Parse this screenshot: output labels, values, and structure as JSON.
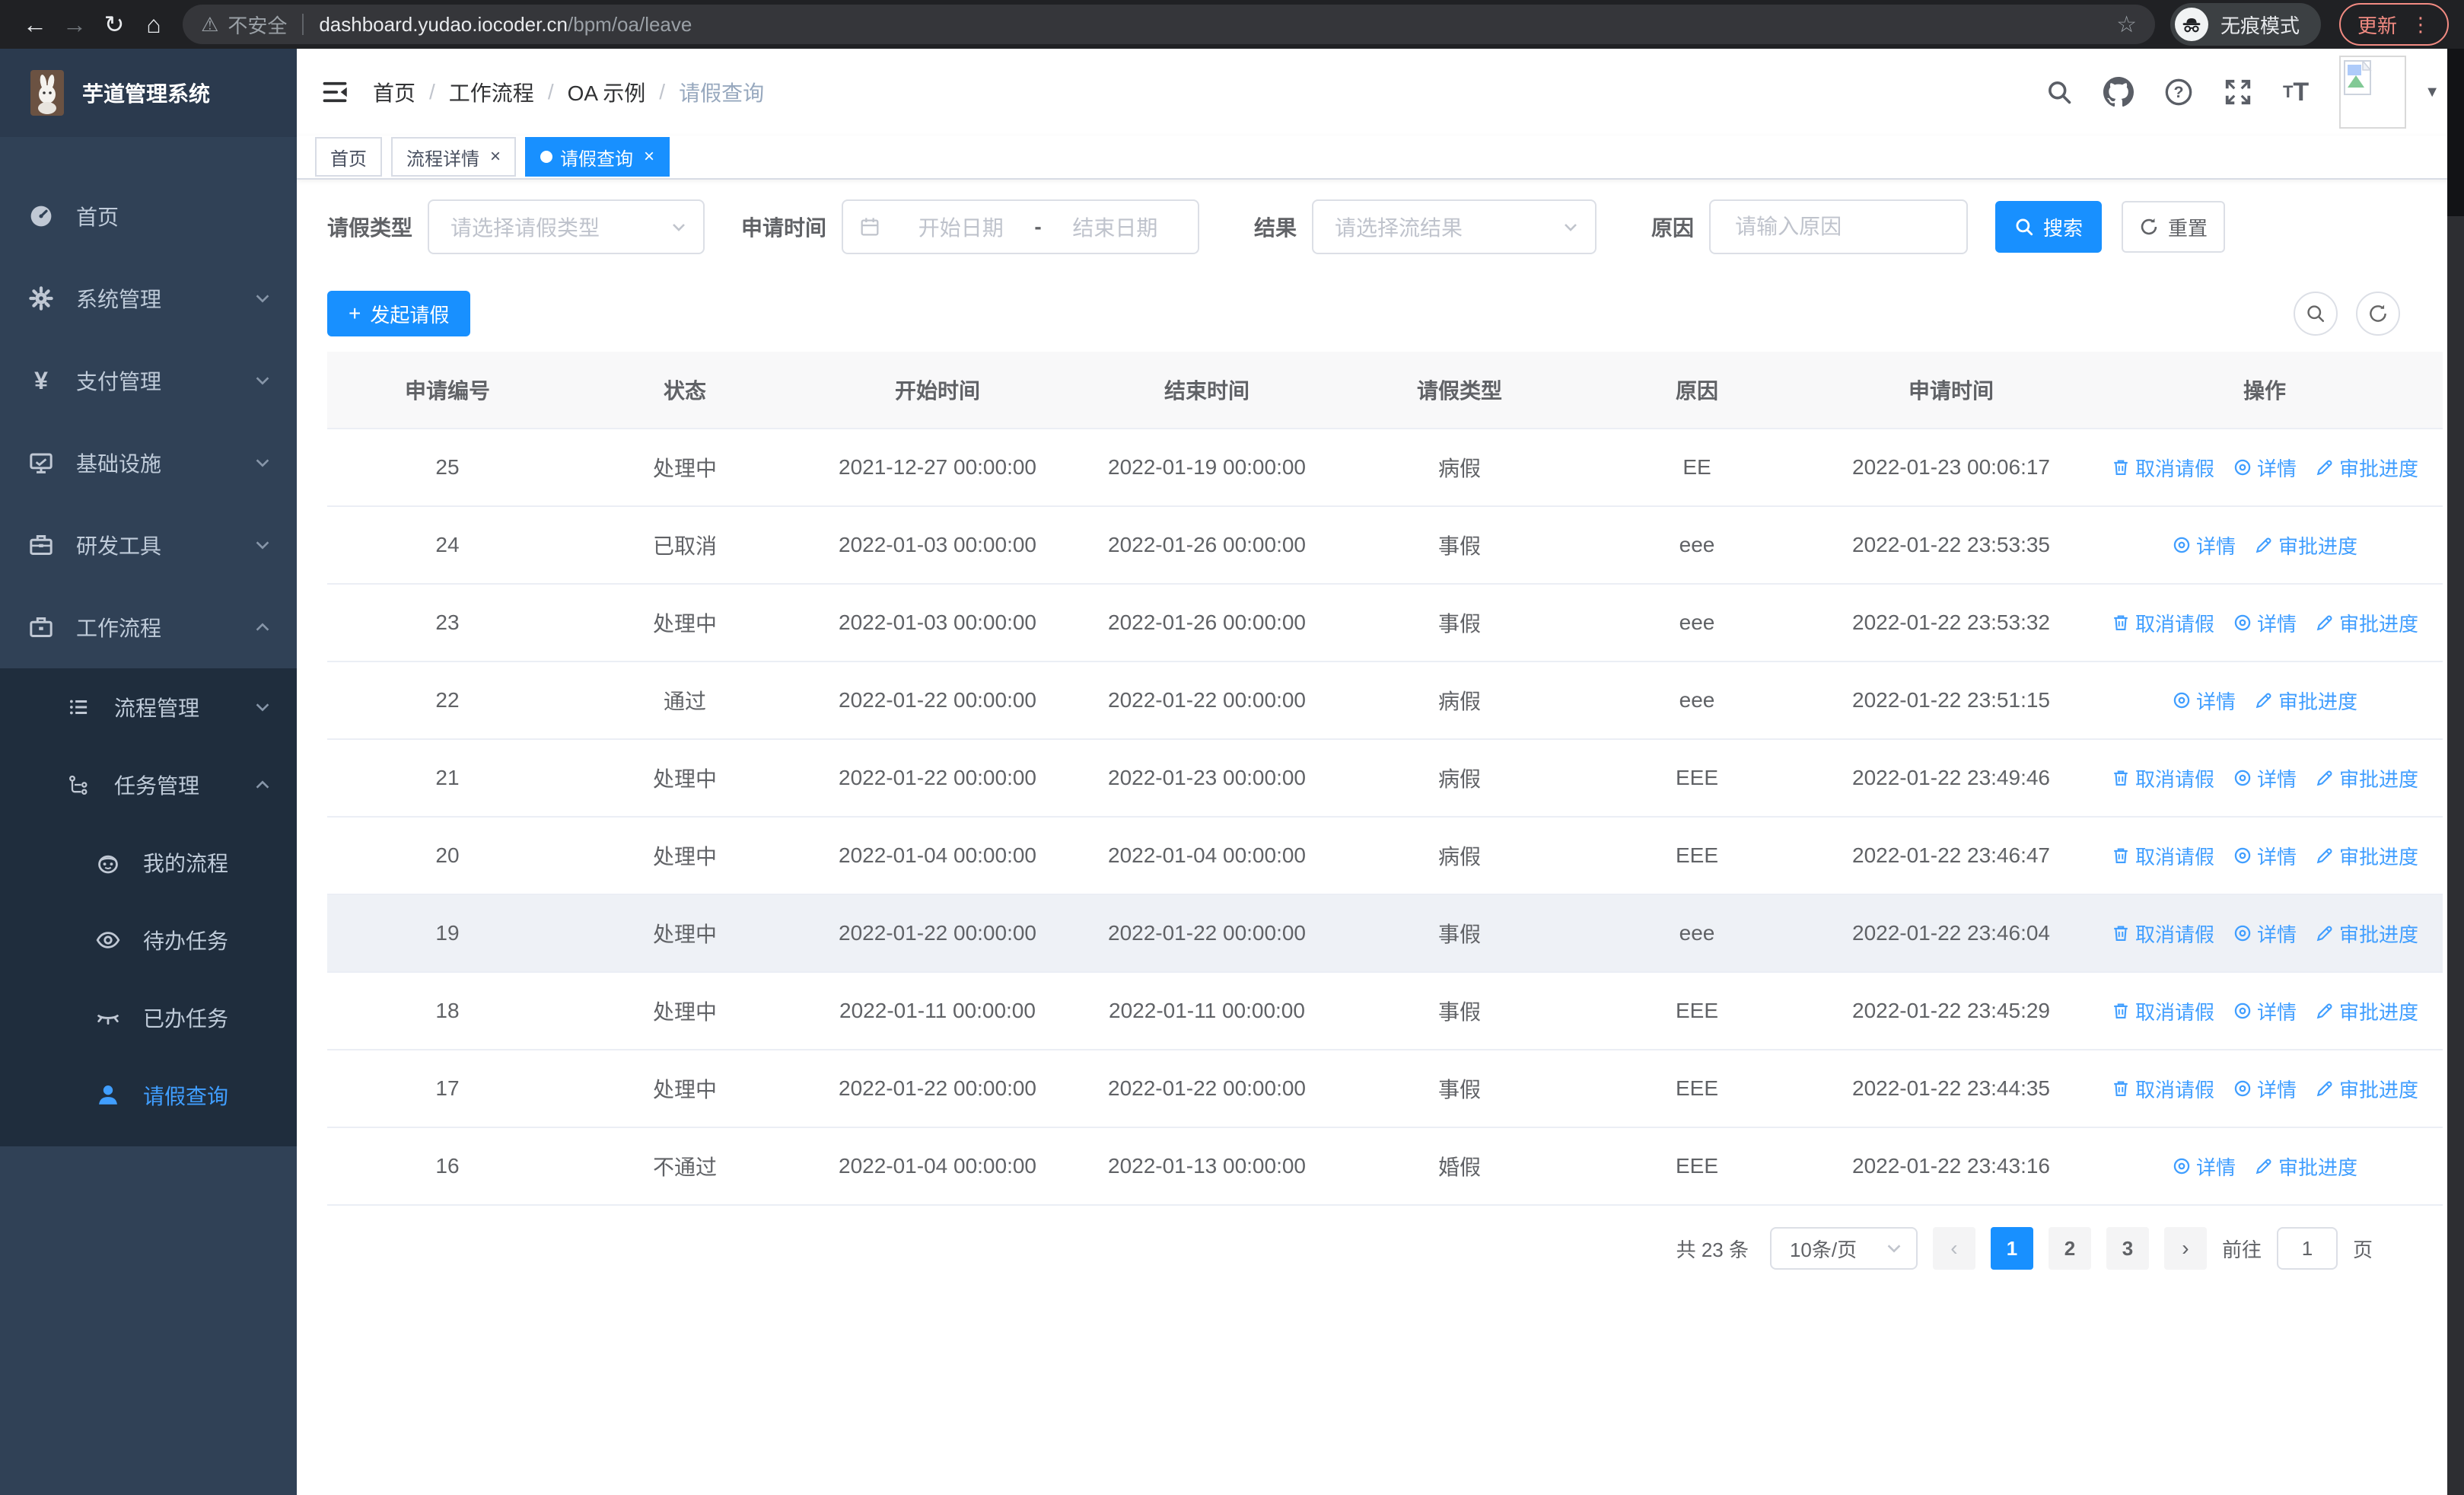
{
  "browser": {
    "security_label": "不安全",
    "url_host": "dashboard.yudao.iocoder.cn",
    "url_path": "/bpm/oa/leave",
    "incognito_label": "无痕模式",
    "update_label": "更新"
  },
  "colors": {
    "accent": "#1890ff",
    "link": "#409eff",
    "sidebar_bg": "#304156",
    "submenu_bg": "#1f2d3d",
    "tab_active_bg": "#1890ff",
    "update_button": "#f28b82"
  },
  "header": {
    "logo_title": "芋道管理系统",
    "breadcrumb": [
      "首页",
      "工作流程",
      "OA 示例",
      "请假查询"
    ]
  },
  "tabs": [
    {
      "label": "首页",
      "closable": false,
      "active": false
    },
    {
      "label": "流程详情",
      "closable": true,
      "active": false
    },
    {
      "label": "请假查询",
      "closable": true,
      "active": true
    }
  ],
  "sidebar": {
    "items": [
      {
        "label": "首页",
        "icon": "dashboard-icon"
      },
      {
        "label": "系统管理",
        "icon": "gear-icon",
        "arrow": "down"
      },
      {
        "label": "支付管理",
        "icon": "yen-icon",
        "arrow": "down"
      },
      {
        "label": "基础设施",
        "icon": "monitor-icon",
        "arrow": "down"
      },
      {
        "label": "研发工具",
        "icon": "toolbox-icon",
        "arrow": "down"
      },
      {
        "label": "工作流程",
        "icon": "briefcase-icon",
        "arrow": "up",
        "expanded": true,
        "children": [
          {
            "label": "流程管理",
            "icon": "list-icon",
            "arrow": "down"
          },
          {
            "label": "任务管理",
            "icon": "tree-icon",
            "arrow": "up",
            "expanded": true,
            "children": [
              {
                "label": "我的流程",
                "icon": "robot-icon"
              },
              {
                "label": "待办任务",
                "icon": "eye-icon"
              },
              {
                "label": "已办任务",
                "icon": "eye-closed-icon"
              },
              {
                "label": "请假查询",
                "icon": "user-icon",
                "active": true
              }
            ]
          }
        ]
      }
    ]
  },
  "filters": {
    "leave_type": {
      "label": "请假类型",
      "placeholder": "请选择请假类型"
    },
    "apply_time": {
      "label": "申请时间",
      "start_placeholder": "开始日期",
      "separator": "-",
      "end_placeholder": "结束日期"
    },
    "result": {
      "label": "结果",
      "placeholder": "请选择流结果"
    },
    "reason": {
      "label": "原因",
      "placeholder": "请输入原因"
    },
    "search_label": "搜索",
    "reset_label": "重置"
  },
  "toolbar": {
    "create_label": "发起请假"
  },
  "table": {
    "columns": [
      "申请编号",
      "状态",
      "开始时间",
      "结束时间",
      "请假类型",
      "原因",
      "申请时间",
      "操作"
    ],
    "action_labels": {
      "cancel": "取消请假",
      "detail": "详情",
      "progress": "审批进度"
    },
    "rows": [
      {
        "id": "25",
        "status": "处理中",
        "start": "2021-12-27 00:00:00",
        "end": "2022-01-19 00:00:00",
        "type": "病假",
        "reason": "EE",
        "apply_time": "2022-01-23 00:06:17",
        "actions": [
          "cancel",
          "detail",
          "progress"
        ],
        "highlighted": false
      },
      {
        "id": "24",
        "status": "已取消",
        "start": "2022-01-03 00:00:00",
        "end": "2022-01-26 00:00:00",
        "type": "事假",
        "reason": "eee",
        "apply_time": "2022-01-22 23:53:35",
        "actions": [
          "detail",
          "progress"
        ],
        "highlighted": false
      },
      {
        "id": "23",
        "status": "处理中",
        "start": "2022-01-03 00:00:00",
        "end": "2022-01-26 00:00:00",
        "type": "事假",
        "reason": "eee",
        "apply_time": "2022-01-22 23:53:32",
        "actions": [
          "cancel",
          "detail",
          "progress"
        ],
        "highlighted": false
      },
      {
        "id": "22",
        "status": "通过",
        "start": "2022-01-22 00:00:00",
        "end": "2022-01-22 00:00:00",
        "type": "病假",
        "reason": "eee",
        "apply_time": "2022-01-22 23:51:15",
        "actions": [
          "detail",
          "progress"
        ],
        "highlighted": false
      },
      {
        "id": "21",
        "status": "处理中",
        "start": "2022-01-22 00:00:00",
        "end": "2022-01-23 00:00:00",
        "type": "病假",
        "reason": "EEE",
        "apply_time": "2022-01-22 23:49:46",
        "actions": [
          "cancel",
          "detail",
          "progress"
        ],
        "highlighted": false
      },
      {
        "id": "20",
        "status": "处理中",
        "start": "2022-01-04 00:00:00",
        "end": "2022-01-04 00:00:00",
        "type": "病假",
        "reason": "EEE",
        "apply_time": "2022-01-22 23:46:47",
        "actions": [
          "cancel",
          "detail",
          "progress"
        ],
        "highlighted": false
      },
      {
        "id": "19",
        "status": "处理中",
        "start": "2022-01-22 00:00:00",
        "end": "2022-01-22 00:00:00",
        "type": "事假",
        "reason": "eee",
        "apply_time": "2022-01-22 23:46:04",
        "actions": [
          "cancel",
          "detail",
          "progress"
        ],
        "highlighted": true
      },
      {
        "id": "18",
        "status": "处理中",
        "start": "2022-01-11 00:00:00",
        "end": "2022-01-11 00:00:00",
        "type": "事假",
        "reason": "EEE",
        "apply_time": "2022-01-22 23:45:29",
        "actions": [
          "cancel",
          "detail",
          "progress"
        ],
        "highlighted": false
      },
      {
        "id": "17",
        "status": "处理中",
        "start": "2022-01-22 00:00:00",
        "end": "2022-01-22 00:00:00",
        "type": "事假",
        "reason": "EEE",
        "apply_time": "2022-01-22 23:44:35",
        "actions": [
          "cancel",
          "detail",
          "progress"
        ],
        "highlighted": false
      },
      {
        "id": "16",
        "status": "不通过",
        "start": "2022-01-04 00:00:00",
        "end": "2022-01-13 00:00:00",
        "type": "婚假",
        "reason": "EEE",
        "apply_time": "2022-01-22 23:43:16",
        "actions": [
          "detail",
          "progress"
        ],
        "highlighted": false
      }
    ]
  },
  "pagination": {
    "total_label": "共 23 条",
    "page_size_label": "10条/页",
    "pages": [
      "1",
      "2",
      "3"
    ],
    "active_page": "1",
    "goto_label": "前往",
    "goto_value": "1",
    "unit_label": "页"
  }
}
